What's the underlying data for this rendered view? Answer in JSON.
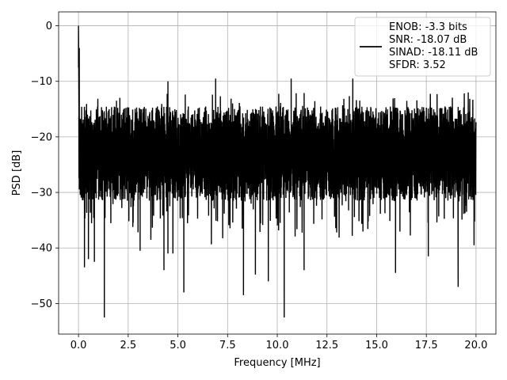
{
  "chart_data": {
    "type": "line",
    "xlabel": "Frequency [MHz]",
    "ylabel": "PSD [dB]",
    "xlim": [
      -1.0,
      21.0
    ],
    "ylim": [
      -55.5,
      2.5
    ],
    "xticks": [
      0.0,
      2.5,
      5.0,
      7.5,
      10.0,
      12.5,
      15.0,
      17.5,
      20.0
    ],
    "xtick_labels": [
      "0.0",
      "2.5",
      "5.0",
      "7.5",
      "10.0",
      "12.5",
      "15.0",
      "17.5",
      "20.0"
    ],
    "yticks": [
      0,
      -10,
      -20,
      -30,
      -40,
      -50
    ],
    "ytick_labels": [
      "0",
      "−10",
      "−20",
      "−30",
      "−40",
      "−50"
    ],
    "grid": true,
    "legend_position": "top-right",
    "series": [
      {
        "name": "ENOB: -3.3 bits\nSNR: -18.07 dB\nSINAD: -18.11 dB\nSFDR: 3.52",
        "color": "#000000",
        "peak": {
          "x": 0.0,
          "y": 0.0
        },
        "band": {
          "x_start": 0.02,
          "x_end": 20.0,
          "upper_typical": -14.5,
          "lower_typical": -31.5,
          "median": -22.5
        },
        "notable_points": [
          {
            "x": 0.04,
            "y": -4.0
          },
          {
            "x": 0.1,
            "y": -24.0
          },
          {
            "x": 0.3,
            "y": -43.5
          },
          {
            "x": 0.5,
            "y": -42.0
          },
          {
            "x": 0.8,
            "y": -42.5
          },
          {
            "x": 1.3,
            "y": -52.5
          },
          {
            "x": 3.1,
            "y": -40.5
          },
          {
            "x": 4.3,
            "y": -44.0
          },
          {
            "x": 4.5,
            "y": -41.0
          },
          {
            "x": 4.75,
            "y": -41.0
          },
          {
            "x": 5.3,
            "y": -48.0
          },
          {
            "x": 4.5,
            "y": -10.0
          },
          {
            "x": 6.9,
            "y": -9.5
          },
          {
            "x": 8.3,
            "y": -48.5
          },
          {
            "x": 8.9,
            "y": -44.8
          },
          {
            "x": 9.55,
            "y": -46.0
          },
          {
            "x": 10.35,
            "y": -52.5
          },
          {
            "x": 10.7,
            "y": -9.5
          },
          {
            "x": 11.35,
            "y": -44.0
          },
          {
            "x": 13.8,
            "y": -9.5
          },
          {
            "x": 15.95,
            "y": -44.5
          },
          {
            "x": 17.6,
            "y": -41.5
          },
          {
            "x": 19.1,
            "y": -47.0
          },
          {
            "x": 19.9,
            "y": -39.5
          }
        ]
      }
    ],
    "legend": {
      "lines": [
        "ENOB: -3.3 bits",
        "SNR: -18.07 dB",
        "SINAD: -18.11 dB",
        "SFDR: 3.52"
      ]
    }
  }
}
